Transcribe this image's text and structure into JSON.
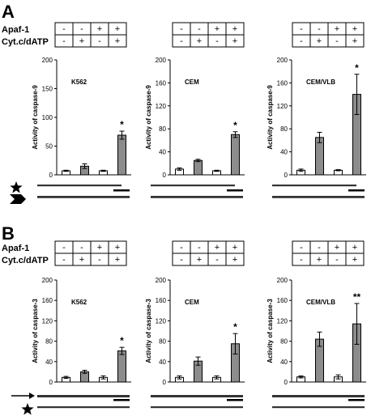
{
  "panel_labels": [
    "A",
    "B"
  ],
  "row_labels": [
    "Apaf-1",
    "Cyt.c/dATP"
  ],
  "condition_signs": {
    "apaf1": [
      "-",
      "-",
      "+",
      "+"
    ],
    "cytc": [
      "-",
      "+",
      "-",
      "+"
    ]
  },
  "colors": {
    "open_bar": "#ffffff",
    "filled_bar": "#8c8c8c",
    "stroke": "#000000"
  },
  "chart_data": [
    {
      "type": "bar",
      "panel": "A",
      "title": "K562",
      "ylabel": "Activity of caspase-9",
      "ylim": [
        0,
        200
      ],
      "yticks": [
        0,
        50,
        100,
        150,
        200
      ],
      "categories": [
        "1",
        "2",
        "3",
        "4"
      ],
      "values": [
        7,
        15,
        7,
        69
      ],
      "errors": [
        1,
        4,
        1,
        7
      ],
      "annotations": [
        "",
        "",
        "",
        "*"
      ]
    },
    {
      "type": "bar",
      "panel": "A",
      "title": "CEM",
      "ylabel": "Activity of caspase-9",
      "ylim": [
        0,
        200
      ],
      "yticks": [
        0,
        40,
        80,
        120,
        160,
        200
      ],
      "categories": [
        "1",
        "2",
        "3",
        "4"
      ],
      "values": [
        10,
        25,
        7,
        70
      ],
      "errors": [
        2,
        2,
        1,
        5
      ],
      "annotations": [
        "",
        "",
        "",
        "*"
      ]
    },
    {
      "type": "bar",
      "panel": "A",
      "title": "CEM/VLB",
      "ylabel": "Activity of caspase-9",
      "ylim": [
        0,
        200
      ],
      "yticks": [
        0,
        40,
        80,
        120,
        160,
        200
      ],
      "categories": [
        "1",
        "2",
        "3",
        "4"
      ],
      "values": [
        8,
        65,
        8,
        140
      ],
      "errors": [
        2,
        9,
        1,
        35
      ],
      "annotations": [
        "",
        "",
        "",
        "*"
      ]
    },
    {
      "type": "bar",
      "panel": "B",
      "title": "K562",
      "ylabel": "Activity of caspase-3",
      "ylim": [
        0,
        200
      ],
      "yticks": [
        0,
        40,
        80,
        120,
        160,
        200
      ],
      "categories": [
        "1",
        "2",
        "3",
        "4"
      ],
      "values": [
        9,
        20,
        9,
        61
      ],
      "errors": [
        2,
        3,
        3,
        7
      ],
      "annotations": [
        "",
        "",
        "",
        "*"
      ]
    },
    {
      "type": "bar",
      "panel": "B",
      "title": "CEM",
      "ylabel": "Activity of caspase-3",
      "ylim": [
        0,
        200
      ],
      "yticks": [
        0,
        40,
        80,
        120,
        160,
        200
      ],
      "categories": [
        "1",
        "2",
        "3",
        "4"
      ],
      "values": [
        9,
        41,
        9,
        75
      ],
      "errors": [
        3,
        8,
        3,
        20
      ],
      "annotations": [
        "",
        "",
        "",
        "*"
      ]
    },
    {
      "type": "bar",
      "panel": "B",
      "title": "CEM/VLB",
      "ylabel": "Activity of caspase-3",
      "ylim": [
        0,
        200
      ],
      "yticks": [
        0,
        40,
        80,
        120,
        160,
        200
      ],
      "categories": [
        "1",
        "2",
        "3",
        "4"
      ],
      "values": [
        10,
        84,
        10,
        114
      ],
      "errors": [
        2,
        14,
        4,
        40
      ],
      "annotations": [
        "",
        "",
        "",
        "**"
      ]
    }
  ]
}
